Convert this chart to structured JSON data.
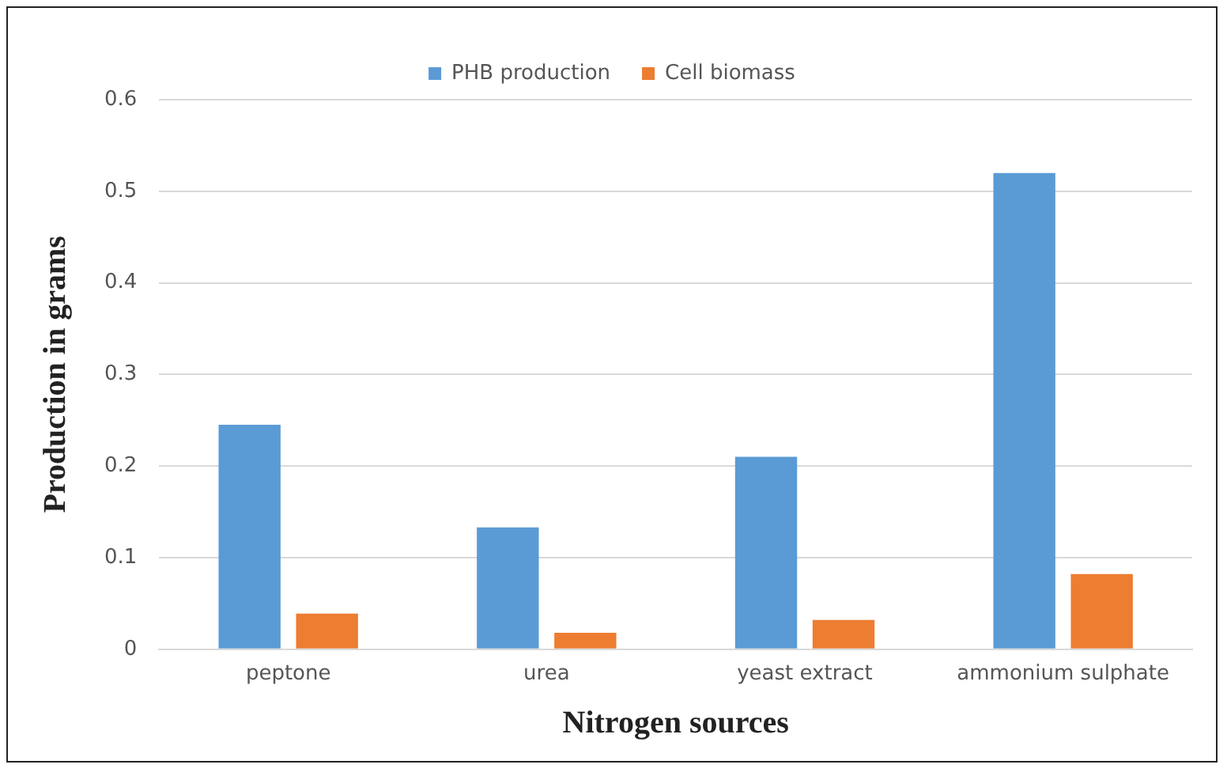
{
  "chart_data": {
    "type": "bar",
    "xlabel": "Nitrogen sources",
    "ylabel": "Production in grams",
    "categories": [
      "peptone",
      "urea",
      "yeast extract",
      "ammonium sulphate"
    ],
    "series": [
      {
        "name": "PHB production",
        "color": "#5b9bd5",
        "values": [
          0.245,
          0.133,
          0.21,
          0.52
        ]
      },
      {
        "name": "Cell biomass",
        "color": "#ed7d31",
        "values": [
          0.039,
          0.018,
          0.032,
          0.082
        ]
      }
    ],
    "ylim": [
      0,
      0.6
    ],
    "yticks": [
      0,
      0.1,
      0.2,
      0.3,
      0.4,
      0.5,
      0.6
    ],
    "grid": "y",
    "legend": "top"
  }
}
